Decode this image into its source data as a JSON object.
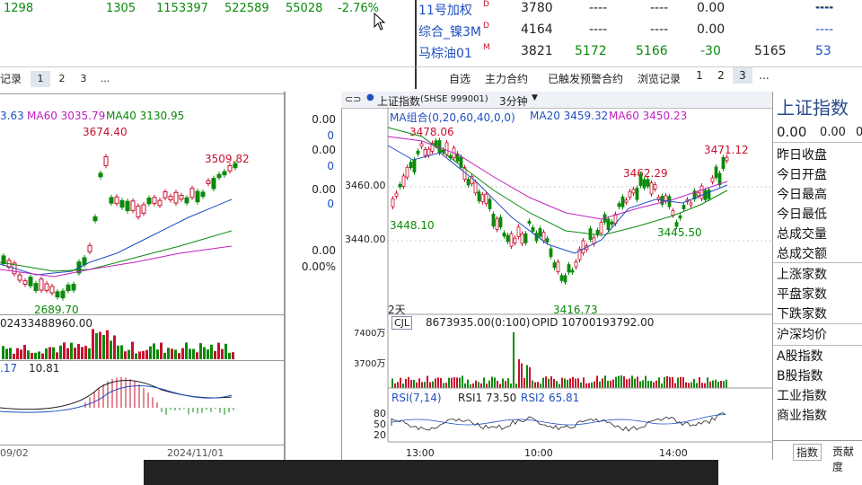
{
  "top_left_quote": {
    "values": [
      "1298",
      "1305",
      "1153397",
      "522589",
      "55028",
      "-2.76%"
    ]
  },
  "left_tabs": {
    "label": "记录",
    "pages": [
      "1",
      "2",
      "3",
      "..."
    ]
  },
  "right_quotes": {
    "rows": [
      {
        "name": "11号加权",
        "flag": "D",
        "price": "3780",
        "c1": "----",
        "c2": "----",
        "chg": "0.00",
        "c4": "",
        "c5": "----",
        "c6": "----"
      },
      {
        "name": "综合_镍3M",
        "flag": "D",
        "price": "4164",
        "c1": "----",
        "c2": "----",
        "chg": "0.00",
        "c4": "",
        "c5": "----",
        "c6": "----"
      },
      {
        "name": "马棕油01",
        "flag": "M",
        "price": "3821",
        "c1": "5172",
        "c2": "5166",
        "chg": "-30",
        "c4": "5165",
        "c5": "53",
        "c6": ""
      }
    ]
  },
  "right_tabs": {
    "items": [
      "自选",
      "主力合约",
      "已触发预警合约",
      "浏览记录"
    ],
    "pages": [
      "1",
      "2",
      "3",
      "..."
    ]
  },
  "left_chart": {
    "ma_partial": "3.63",
    "ma60_label": "MA60 3035.79",
    "ma40_label": "MA40 3130.95",
    "high_label": "3674.40",
    "last_label": "3509.82",
    "low_label": "2689.70",
    "vol_label": "02433488960.00",
    "macd_left": ".17",
    "macd_val": "10.81",
    "date_left": "09/02",
    "date_right": "2024/11/01"
  },
  "mid_col": {
    "values": [
      "0.00",
      "0",
      "0.00",
      "0",
      "0.00",
      "0",
      "0.00",
      "0.00%"
    ]
  },
  "main_chart": {
    "title": "上证指数",
    "code": "(SHSE 999001)",
    "period": "3分钟",
    "ma_group": "MA组合(0,20,60,40,0,0)",
    "ma20": "MA20 3459.32",
    "ma60": "MA60 3450.23",
    "y_labels": [
      "3460.00",
      "3440.00"
    ],
    "ann_high": "3478.06",
    "ann_left_low": "3448.10",
    "ann_low": "3416.73",
    "ann_mid": "3462.29",
    "ann_last": "3471.12",
    "ann_right": "3445.50",
    "days_label": "2天",
    "cjl": "CJL",
    "cjl_val": "8673935.00(0:100)",
    "opid": "OPID 10700193792.00",
    "vol_y": [
      "7400万",
      "3700万"
    ],
    "rsi_label": "RSI(7,14)",
    "rsi1": "RSI1 73.50",
    "rsi2": "RSI2 65.81",
    "rsi_y": [
      "80",
      "50",
      "20"
    ],
    "x_labels": [
      "13:00",
      "10:00",
      "14:00"
    ]
  },
  "right_panel": {
    "title": "上证指数",
    "top_values": [
      "0.00",
      "0.00",
      "0"
    ],
    "items": [
      "昨日收盘",
      "今日开盘",
      "今日最高",
      "今日最低",
      "总成交量",
      "总成交额",
      "上涨家数",
      "平盘家数",
      "下跌家数",
      "沪深均价",
      "A股指数",
      "B股指数",
      "工业指数",
      "商业指数"
    ],
    "tabs": [
      "指数",
      "贡献度"
    ]
  },
  "colors": {
    "up": "#c8102e",
    "down": "#0a8a0a",
    "ma_blue": "#2050c0",
    "ma_magenta": "#c020c0"
  }
}
